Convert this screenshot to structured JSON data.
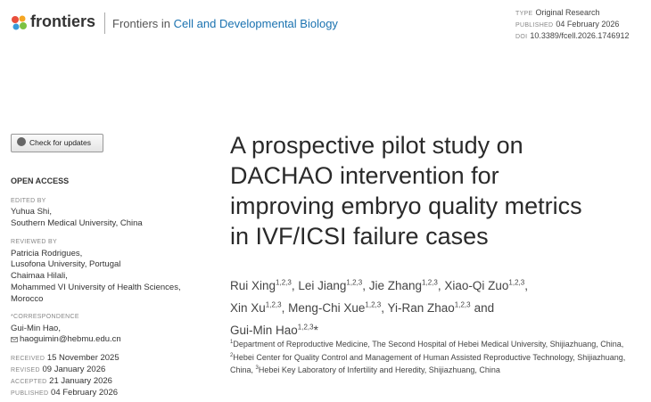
{
  "header": {
    "logo": "frontiers",
    "journal_prefix": "Frontiers in",
    "journal_name": "Cell and Developmental Biology",
    "meta": [
      {
        "label": "TYPE",
        "value": "Original Research"
      },
      {
        "label": "PUBLISHED",
        "value": "04 February 2026"
      },
      {
        "label": "DOI",
        "value": "10.3389/fcell.2026.1746912"
      }
    ]
  },
  "sidebar": {
    "check_updates": "Check for updates",
    "open_access": "OPEN ACCESS",
    "edited_by": {
      "label": "EDITED BY",
      "lines": [
        "Yuhua Shi,",
        "Southern Medical University, China"
      ]
    },
    "reviewed_by": {
      "label": "REVIEWED BY",
      "lines": [
        "Patricia Rodrigues,",
        "Lusofona University, Portugal",
        "Chaimaa Hilali,",
        "Mohammed VI University of Health Sciences,",
        "Morocco"
      ]
    },
    "correspondence": {
      "label": "*CORRESPONDENCE",
      "name": "Gui-Min Hao,",
      "email": "haoguimin@hebmu.edu.cn"
    },
    "dates": [
      {
        "label": "RECEIVED",
        "value": "15 November 2025"
      },
      {
        "label": "REVISED",
        "value": "09 January 2026"
      },
      {
        "label": "ACCEPTED",
        "value": "21 January 2026"
      },
      {
        "label": "PUBLISHED",
        "value": "04 February 2026"
      }
    ]
  },
  "article": {
    "title_lines": [
      "A prospective pilot study on",
      "DACHAO intervention for",
      "improving embryo quality metrics",
      "in IVF/ICSI failure cases"
    ],
    "author_lines": [
      [
        {
          "name": "Rui Xing",
          "sup": "1,2,3",
          "after": ","
        },
        {
          "name": "Lei Jiang",
          "sup": "1,2,3",
          "after": ","
        },
        {
          "name": "Jie Zhang",
          "sup": "1,2,3",
          "after": ","
        },
        {
          "name": "Xiao-Qi Zuo",
          "sup": "1,2,3",
          "after": ","
        }
      ],
      [
        {
          "name": "Xin Xu",
          "sup": "1,2,3",
          "after": ","
        },
        {
          "name": "Meng-Chi Xue",
          "sup": "1,2,3",
          "after": ","
        },
        {
          "name": "Yi-Ran Zhao",
          "sup": "1,2,3",
          "after": "and"
        }
      ],
      [
        {
          "name": "Gui-Min Hao",
          "sup": "1,2,3",
          "after": "*"
        }
      ]
    ],
    "affiliations": [
      {
        "sup": "1",
        "text": "Department of Reproductive Medicine, The Second Hospital of Hebei Medical University, Shijiazhuang, China,"
      },
      {
        "sup": "2",
        "text": "Hebei Center for Quality Control and Management of Human Assisted Reproductive Technology, Shijiazhuang, China,"
      },
      {
        "sup": "3",
        "text": "Hebei Key Laboratory of Infertility and Heredity, Shijiazhuang, China"
      }
    ]
  }
}
